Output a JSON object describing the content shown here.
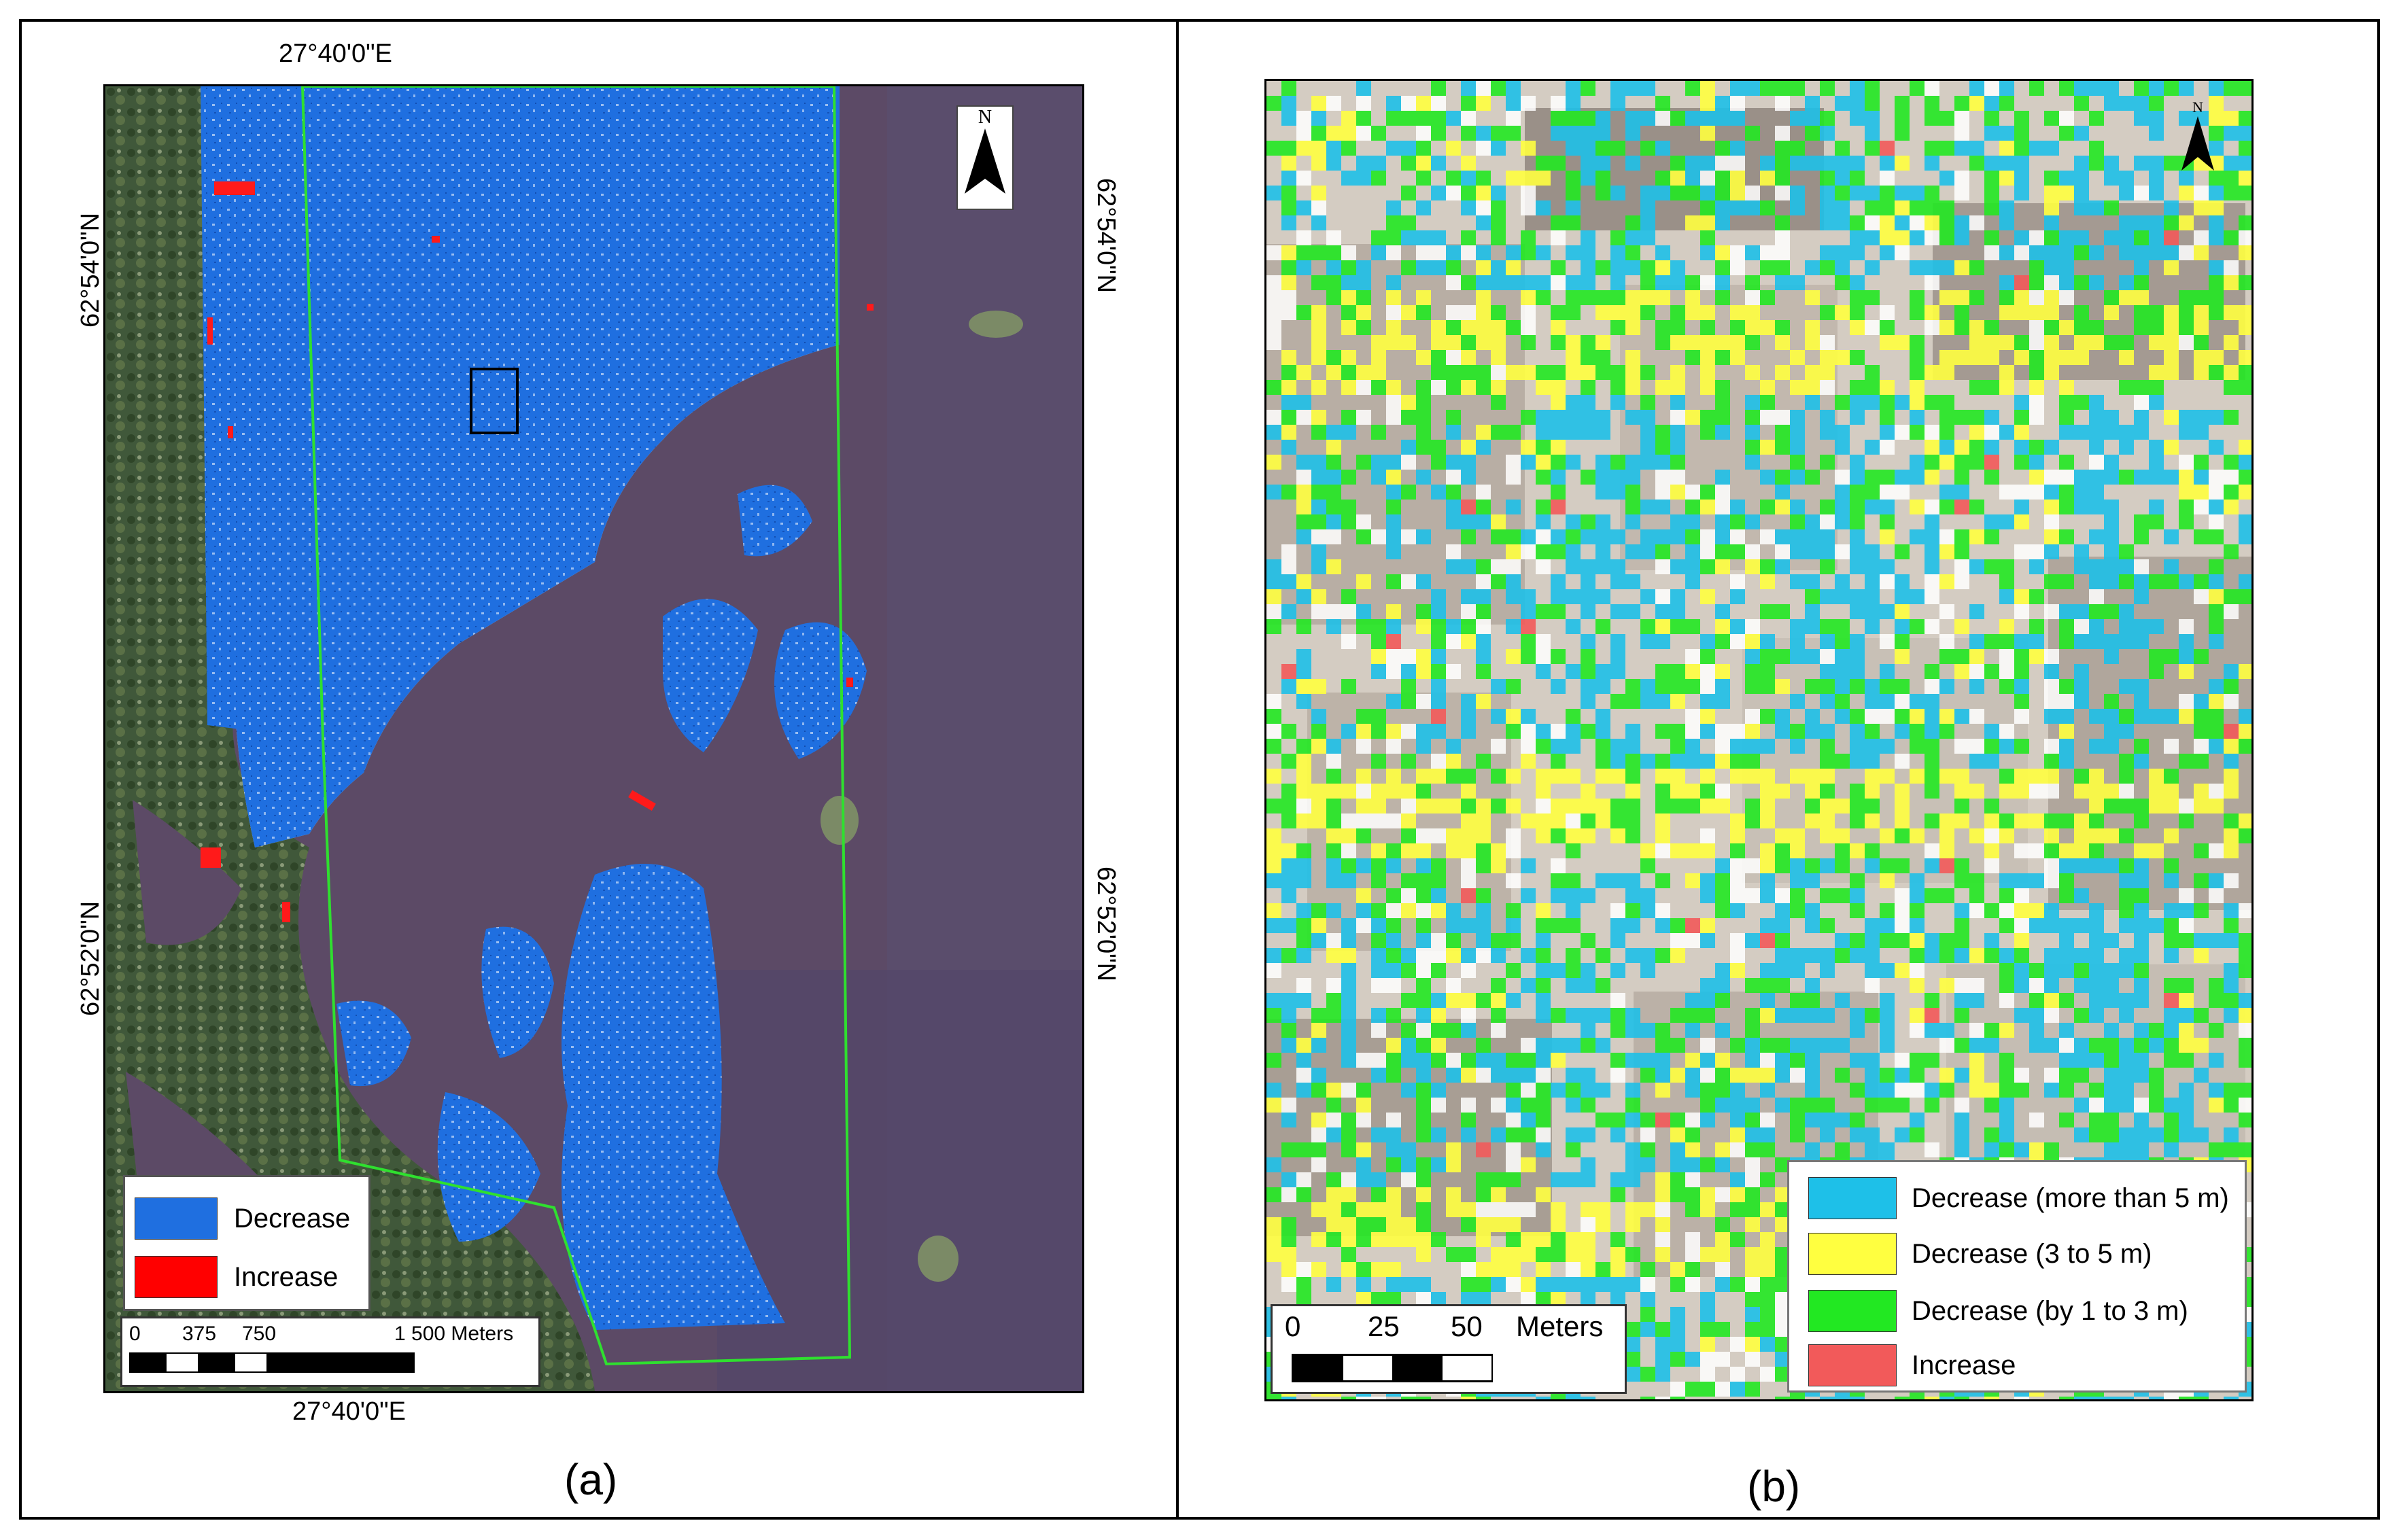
{
  "panel_a": {
    "caption": "(a)",
    "graticule": {
      "top_lon": "27°40'0\"E",
      "bottom_lon": "27°40'0\"E",
      "left_upper_lat": "62°54'0\"N",
      "left_lower_lat": "62°52'0\"N",
      "right_upper_lat": "62°54'0\"N",
      "right_lower_lat": "62°52'0\"N"
    },
    "north_arrow": {
      "label": "N",
      "icon": "north-arrow-icon"
    },
    "legend": {
      "items": [
        {
          "label": "Decrease",
          "color": "#1f6fe0"
        },
        {
          "label": "Increase",
          "color": "#ff0000"
        }
      ]
    },
    "scale": {
      "labels": [
        "0",
        "375",
        "750",
        "1 500 Meters"
      ]
    },
    "colors": {
      "study_area_outline": "#2fe02f",
      "water": "#5e4a66",
      "forest": "#3c5a32"
    }
  },
  "panel_b": {
    "caption": "(b)",
    "north_arrow": {
      "label": "N",
      "icon": "north-arrow-icon"
    },
    "legend": {
      "items": [
        {
          "label": "Decrease (more than 5 m)",
          "color": "#1ec0e8"
        },
        {
          "label": "Decrease (3 to 5 m)",
          "color": "#ffff40"
        },
        {
          "label": "Decrease (by 1 to 3 m)",
          "color": "#22e822"
        },
        {
          "label": "Increase",
          "color": "#f25a5a"
        }
      ]
    },
    "scale": {
      "labels": [
        "0",
        "25",
        "50",
        "Meters"
      ]
    }
  }
}
